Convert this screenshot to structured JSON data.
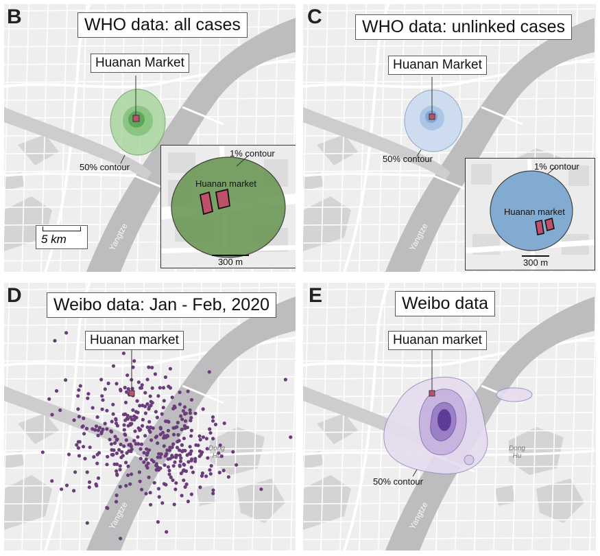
{
  "panels": {
    "B": {
      "letter": "B",
      "title": "WHO data: all cases",
      "market_label": "Huanan Market",
      "contour_label": "50% contour",
      "scale_label": "5 km",
      "river_label": "Yangtze",
      "inset": {
        "contour_label": "1% contour",
        "market_label": "Huanan market",
        "scale_label": "300 m",
        "color": "#6f9a5a"
      },
      "color": "#7fc07a"
    },
    "C": {
      "letter": "C",
      "title": "WHO data: unlinked cases",
      "market_label": "Huanan Market",
      "contour_label": "50% contour",
      "river_label": "Yangtze",
      "inset": {
        "contour_label": "1% contour",
        "market_label": "Huanan market",
        "scale_label": "300 m",
        "color": "#7aa6cf"
      },
      "color": "#9fbde0"
    },
    "D": {
      "letter": "D",
      "title": "Weibo data: Jan - Feb, 2020",
      "market_label": "Huanan market",
      "river_label": "Yangtze",
      "district_label": "Dong Hu",
      "dot_color": "#6a3d7a"
    },
    "E": {
      "letter": "E",
      "title": "Weibo data",
      "market_label": "Huanan market",
      "contour_label": "50% contour",
      "river_label": "Yangtze",
      "district_label": "Dong Hu",
      "color": "#8a6fb8"
    }
  },
  "colors": {
    "market": "#c0506a",
    "road": "#ffffff",
    "river": "#bdbdbf",
    "land": "#eeeeef",
    "park": "#d9d9db"
  }
}
